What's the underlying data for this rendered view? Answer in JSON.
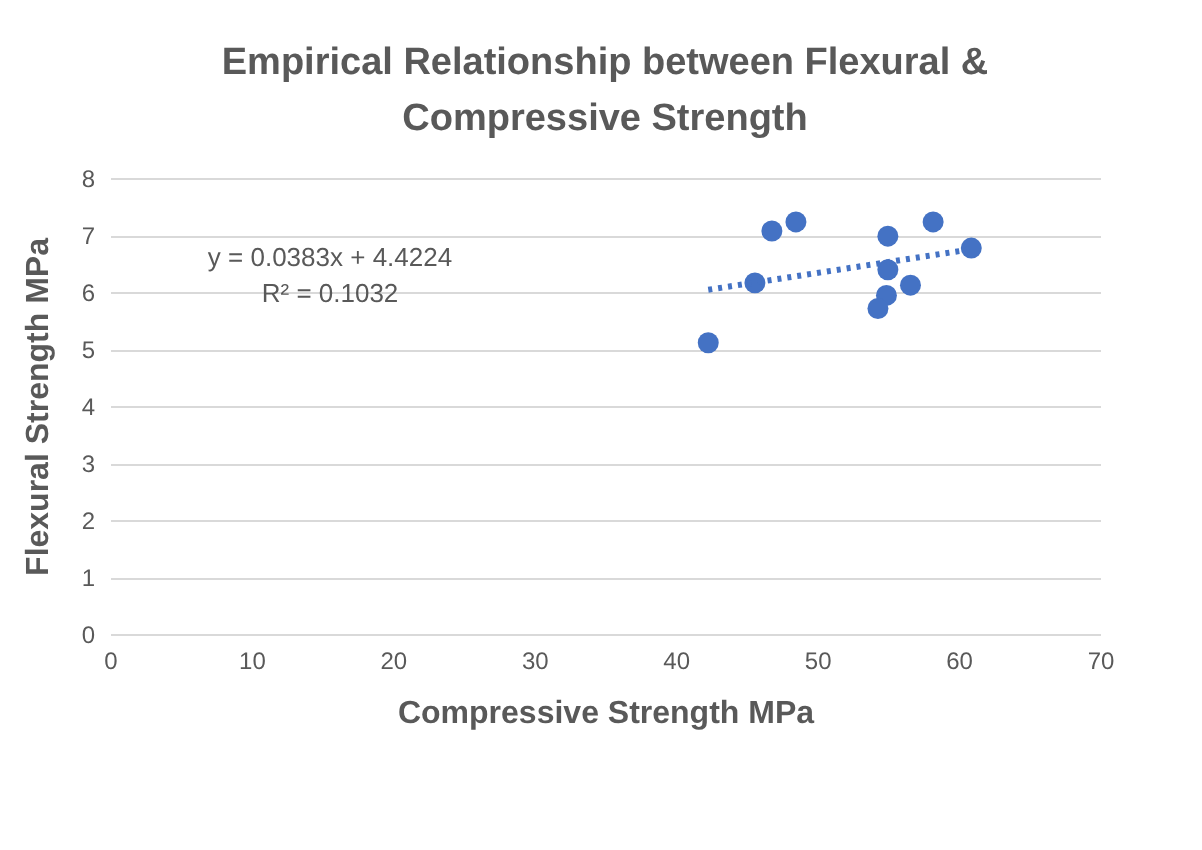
{
  "chart_data": {
    "type": "scatter",
    "title": "Empirical Relationship between Flexural & Compressive Strength",
    "xlabel": "Compressive Strength MPa",
    "ylabel": "Flexural Strength MPa",
    "xlim": [
      0,
      70
    ],
    "xticks": [
      0,
      10,
      20,
      30,
      40,
      50,
      60,
      70
    ],
    "ylim": [
      0,
      8
    ],
    "yticks": [
      0,
      1,
      2,
      3,
      4,
      5,
      6,
      7,
      8
    ],
    "grid": "y",
    "annotations": [
      "y = 0.0383x + 4.4224",
      "R² = 0.1032"
    ],
    "series": [
      {
        "marker": "circle",
        "color": "#4472c4",
        "x": [
          42.3,
          45.6,
          46.8,
          48.5,
          55.0,
          55.0,
          54.9,
          54.3,
          56.6,
          58.2,
          60.9
        ],
        "values": [
          5.11,
          6.16,
          7.07,
          7.23,
          6.98,
          6.39,
          5.94,
          5.71,
          6.12,
          7.23,
          6.77
        ]
      },
      {
        "type": "line",
        "marker": "none",
        "line_style": "dotted",
        "color": "#4472c4",
        "x": [
          42.3,
          60.9
        ],
        "values": [
          6.04,
          6.75
        ]
      }
    ]
  }
}
